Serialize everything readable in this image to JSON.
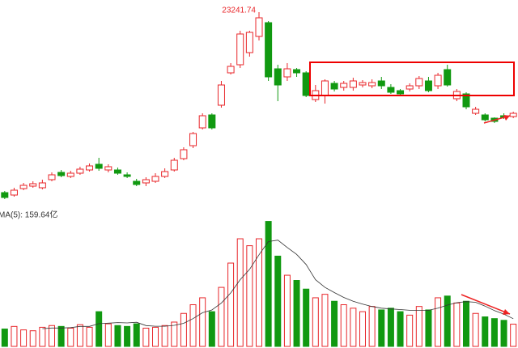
{
  "chart_data": {
    "type": "candlestick",
    "up_color": "#e8262a",
    "down_color": "#119911",
    "ma_color": "#333333",
    "ylim": [
      16281,
      23676
    ],
    "volume_ylim": [
      0,
      760
    ],
    "open": [
      16774,
      16687,
      16919,
      17006,
      16948,
      17238,
      17499,
      17354,
      17470,
      17586,
      17789,
      17586,
      17586,
      17412,
      17180,
      17122,
      17180,
      17354,
      17586,
      17992,
      18456,
      19094,
      19558,
      19906,
      21066,
      21356,
      21791,
      22371,
      22864,
      21211,
      20921,
      21182,
      21066,
      20109,
      20254,
      20689,
      20544,
      20544,
      20631,
      20602,
      20776,
      20544,
      20428,
      20486,
      20602,
      20776,
      20602,
      21182,
      20138,
      20312,
      19616,
      19558,
      19442,
      19529,
      19500
    ],
    "high": [
      16832,
      16948,
      17122,
      17180,
      17238,
      17499,
      17586,
      17557,
      17702,
      17818,
      18021,
      17789,
      17673,
      17499,
      17267,
      17325,
      17470,
      17644,
      18021,
      18398,
      18949,
      19616,
      19616,
      20776,
      21414,
      22574,
      22574,
      23241.74,
      22922,
      21356,
      21414,
      21240,
      21124,
      20631,
      20834,
      20776,
      20776,
      20892,
      20805,
      20834,
      20921,
      20660,
      20486,
      20689,
      20950,
      20921,
      21066,
      21356,
      20486,
      20370,
      19848,
      19616,
      19471,
      19616,
      19674
    ],
    "low": [
      16542,
      16629,
      16861,
      16948,
      16890,
      17180,
      17325,
      17296,
      17412,
      17528,
      17557,
      17499,
      17412,
      17296,
      17006,
      17006,
      17122,
      17296,
      17528,
      17934,
      18369,
      19036,
      19036,
      19819,
      21008,
      21240,
      21646,
      22226,
      20776,
      20051,
      20776,
      20921,
      20196,
      20022,
      19964,
      20399,
      20428,
      20428,
      20544,
      20515,
      20486,
      20312,
      20254,
      20399,
      20486,
      20370,
      20486,
      20573,
      20051,
      19761,
      19558,
      19326,
      19268,
      19413,
      19442
    ],
    "close": [
      16600,
      16861,
      17035,
      17093,
      17122,
      17412,
      17383,
      17470,
      17615,
      17731,
      17644,
      17702,
      17470,
      17354,
      17064,
      17238,
      17354,
      17528,
      17934,
      18311,
      18891,
      19529,
      19094,
      20631,
      21298,
      22458,
      22516,
      23038,
      20921,
      20631,
      21211,
      21066,
      20254,
      20428,
      20776,
      20486,
      20689,
      20776,
      20718,
      20718,
      20602,
      20370,
      20312,
      20602,
      20863,
      20428,
      20979,
      20631,
      20399,
      19848,
      19761,
      19384,
      19326,
      19471,
      19616
    ],
    "volume": [
      100,
      115,
      95,
      90,
      110,
      120,
      115,
      105,
      125,
      110,
      200,
      130,
      120,
      115,
      130,
      105,
      110,
      120,
      140,
      190,
      240,
      280,
      200,
      340,
      480,
      620,
      580,
      620,
      720,
      520,
      410,
      380,
      330,
      280,
      300,
      260,
      240,
      220,
      200,
      230,
      210,
      220,
      200,
      180,
      230,
      210,
      280,
      290,
      250,
      260,
      190,
      170,
      160,
      150,
      128
    ],
    "ma5": [
      null,
      null,
      null,
      null,
      102,
      106,
      106,
      108,
      115,
      115,
      131,
      134,
      137,
      135,
      139,
      120,
      116,
      116,
      121,
      133,
      160,
      194,
      210,
      250,
      308,
      384,
      444,
      528,
      604,
      612,
      570,
      530,
      472,
      384,
      340,
      310,
      282,
      260,
      244,
      230,
      220,
      216,
      212,
      208,
      208,
      208,
      220,
      238,
      252,
      258,
      254,
      232,
      206,
      186,
      159.64
    ],
    "volume_label": "MA(5): 159.64亿"
  }
}
